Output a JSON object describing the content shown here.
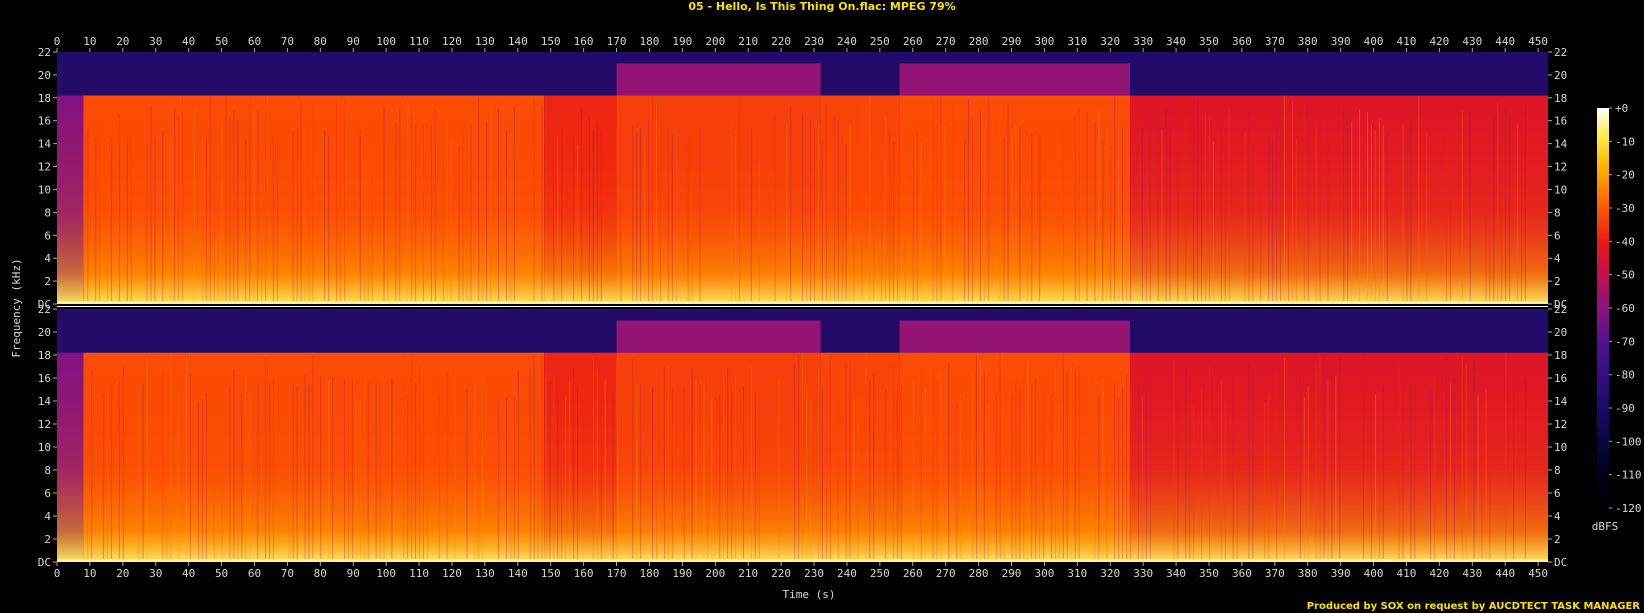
{
  "chart_data": {
    "type": "heatmap",
    "title": "05 - Hello, Is This Thing On.flac: MPEG 79%",
    "xlabel": "Time (s)",
    "ylabel": "Frequency (kHz)",
    "x_ticks": [
      0,
      10,
      20,
      30,
      40,
      50,
      60,
      70,
      80,
      90,
      100,
      110,
      120,
      130,
      140,
      150,
      160,
      170,
      180,
      190,
      200,
      210,
      220,
      230,
      240,
      250,
      260,
      270,
      280,
      290,
      300,
      310,
      320,
      330,
      340,
      350,
      360,
      370,
      380,
      390,
      400,
      410,
      420,
      430,
      440,
      450
    ],
    "xlim": [
      0,
      453
    ],
    "y_ticks": [
      "DC",
      "2",
      "4",
      "6",
      "8",
      "10",
      "12",
      "14",
      "16",
      "18",
      "20",
      "22"
    ],
    "ylim_khz": [
      0,
      22
    ],
    "channels": 2,
    "colorbar": {
      "label": "dBFS",
      "ticks": [
        "+0",
        "-10",
        "-20",
        "-30",
        "-40",
        "-50",
        "-60",
        "-70",
        "-80",
        "-90",
        "-100",
        "-110",
        "-120"
      ],
      "range_db": [
        -120,
        0
      ]
    },
    "spectral_cutoff_khz": 18.2,
    "segments": [
      {
        "start": 0,
        "end": 8,
        "cutoff_khz": 18.2,
        "level_db": -70
      },
      {
        "start": 8,
        "end": 148,
        "cutoff_khz": 18.2,
        "level_db": -42
      },
      {
        "start": 148,
        "end": 170,
        "cutoff_khz": 18.2,
        "level_db": -48
      },
      {
        "start": 170,
        "end": 232,
        "cutoff_khz": 21,
        "level_db": -44
      },
      {
        "start": 232,
        "end": 256,
        "cutoff_khz": 18.2,
        "level_db": -43
      },
      {
        "start": 256,
        "end": 326,
        "cutoff_khz": 21,
        "level_db": -42
      },
      {
        "start": 326,
        "end": 453,
        "cutoff_khz": 18.2,
        "level_db": -52
      }
    ]
  },
  "footer": "Produced by SOX on request by AUCDTECT TASK MANAGER"
}
